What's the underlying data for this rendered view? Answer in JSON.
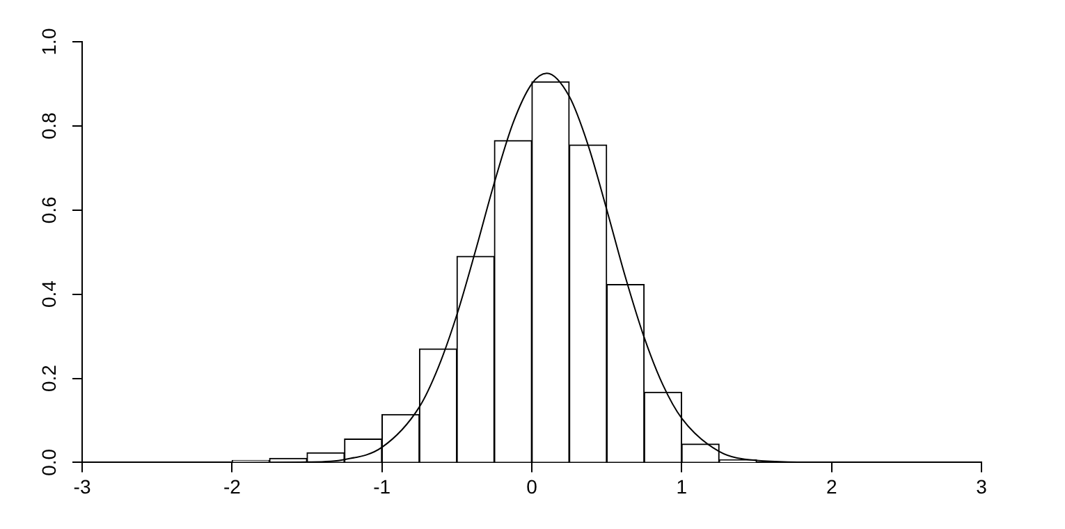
{
  "chart_data": {
    "type": "histogram",
    "bins": [
      -2,
      -1.75,
      -1.5,
      -1.25,
      -1,
      -0.75,
      -0.5,
      -0.25,
      0,
      0.25,
      0.5,
      0.75,
      1,
      1.25,
      1.5
    ],
    "values": [
      0.005,
      0.01,
      0.023,
      0.056,
      0.114,
      0.27,
      0.49,
      0.765,
      0.905,
      0.755,
      0.423,
      0.167,
      0.044,
      0.006
    ],
    "color": "#ffffff",
    "series": [
      {
        "type": "line",
        "color": "#000000",
        "x": [
          -3,
          -2,
          -1.5,
          -1.25,
          -1,
          -0.75,
          -0.625,
          -0.5,
          -0.375,
          -0.25,
          -0.125,
          0,
          0.1,
          0.25,
          0.375,
          0.5,
          0.625,
          0.75,
          0.875,
          1,
          1.25,
          1.5,
          2,
          3
        ],
        "values": [
          0,
          0,
          0.001,
          0.007,
          0.036,
          0.132,
          0.225,
          0.351,
          0.504,
          0.665,
          0.807,
          0.9,
          0.925,
          0.87,
          0.755,
          0.601,
          0.44,
          0.297,
          0.184,
          0.105,
          0.026,
          0.005,
          0,
          0
        ]
      }
    ],
    "xlim": [
      -3,
      3
    ],
    "xticks": [
      -3,
      -2,
      -1,
      0,
      1,
      2,
      3
    ],
    "ylim": [
      0,
      1
    ],
    "yticks": [
      {
        "value": 0,
        "label": "0.0"
      },
      {
        "value": 0.2,
        "label": "0.2"
      },
      {
        "value": 0.4,
        "label": "0.4"
      },
      {
        "value": 0.6,
        "label": "0.6"
      },
      {
        "value": 0.8,
        "label": "0.8"
      },
      {
        "value": 1,
        "label": "1.0"
      }
    ],
    "grid": false,
    "legend": false,
    "marker": "none"
  }
}
